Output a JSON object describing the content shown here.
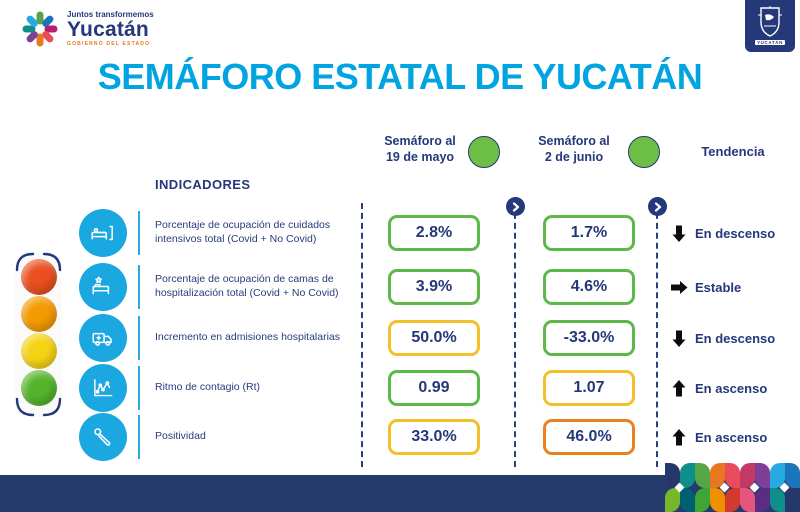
{
  "brand": {
    "tagline": "Juntos transformemos",
    "name": "Yucatán",
    "government": "GOBIERNO DEL ESTADO",
    "crest_label": "YUCATÁN"
  },
  "title": "SEMÁFORO ESTATAL DE YUCATÁN",
  "indicators_header": "INDICADORES",
  "columns": {
    "may": {
      "line1": "Semáforo al",
      "line2": "19 de mayo",
      "status_color": "#6CBE45"
    },
    "june": {
      "line1": "Semáforo al",
      "line2": "2 de junio",
      "status_color": "#6CBE45"
    },
    "trend": {
      "label": "Tendencia"
    }
  },
  "rows": [
    {
      "icon": "icu-bed-icon",
      "label": "Porcentaje de ocupación de cuidados intensivos total (Covid + No Covid)",
      "value_may": "2.8%",
      "may_color": "#5CB947",
      "value_june": "1.7%",
      "june_color": "#5CB947",
      "trend_label": "En descenso",
      "trend_direction": "down"
    },
    {
      "icon": "hospital-bed-icon",
      "label": "Porcentaje de ocupación de camas de hospitalización total (Covid + No Covid)",
      "value_may": "3.9%",
      "may_color": "#5CB947",
      "value_june": "4.6%",
      "june_color": "#5CB947",
      "trend_label": "Estable",
      "trend_direction": "right"
    },
    {
      "icon": "ambulance-icon",
      "label": "Incremento en admisiones hospitalarias",
      "value_may": "50.0%",
      "may_color": "#F2C029",
      "value_june": "-33.0%",
      "june_color": "#5CB947",
      "trend_label": "En descenso",
      "trend_direction": "down"
    },
    {
      "icon": "contagion-chart-icon",
      "label": "Ritmo de contagio (Rt)",
      "value_may": "0.99",
      "may_color": "#5CB947",
      "value_june": "1.07",
      "june_color": "#F2C029",
      "trend_label": "En ascenso",
      "trend_direction": "up"
    },
    {
      "icon": "swab-icon",
      "label": "Positividad",
      "value_may": "33.0%",
      "may_color": "#F2C029",
      "value_june": "46.0%",
      "june_color": "#E8821E",
      "trend_label": "En ascenso",
      "trend_direction": "up"
    }
  ],
  "traffic_light": {
    "lights": [
      "#E94F1F",
      "#F49A00",
      "#F6D215",
      "#54B32B"
    ]
  },
  "mosaic": {
    "row1": [
      "#24386B",
      "#0E8F8A",
      "#56A546",
      "#E87722",
      "#E84C5C",
      "#C13A66",
      "#7D3F98",
      "#27AAE1",
      "#1B75BB"
    ],
    "row2": [
      "#76B82A",
      "#006072",
      "#3FA535",
      "#F09000",
      "#D23A2E",
      "#E75480",
      "#5A2D82",
      "#0E8F8A",
      "#24386B"
    ]
  },
  "colors": {
    "title": "#00A4E0",
    "navy_text": "#24387A",
    "accent_cyan": "#29ABE2",
    "footer_bar": "#253A6D"
  }
}
